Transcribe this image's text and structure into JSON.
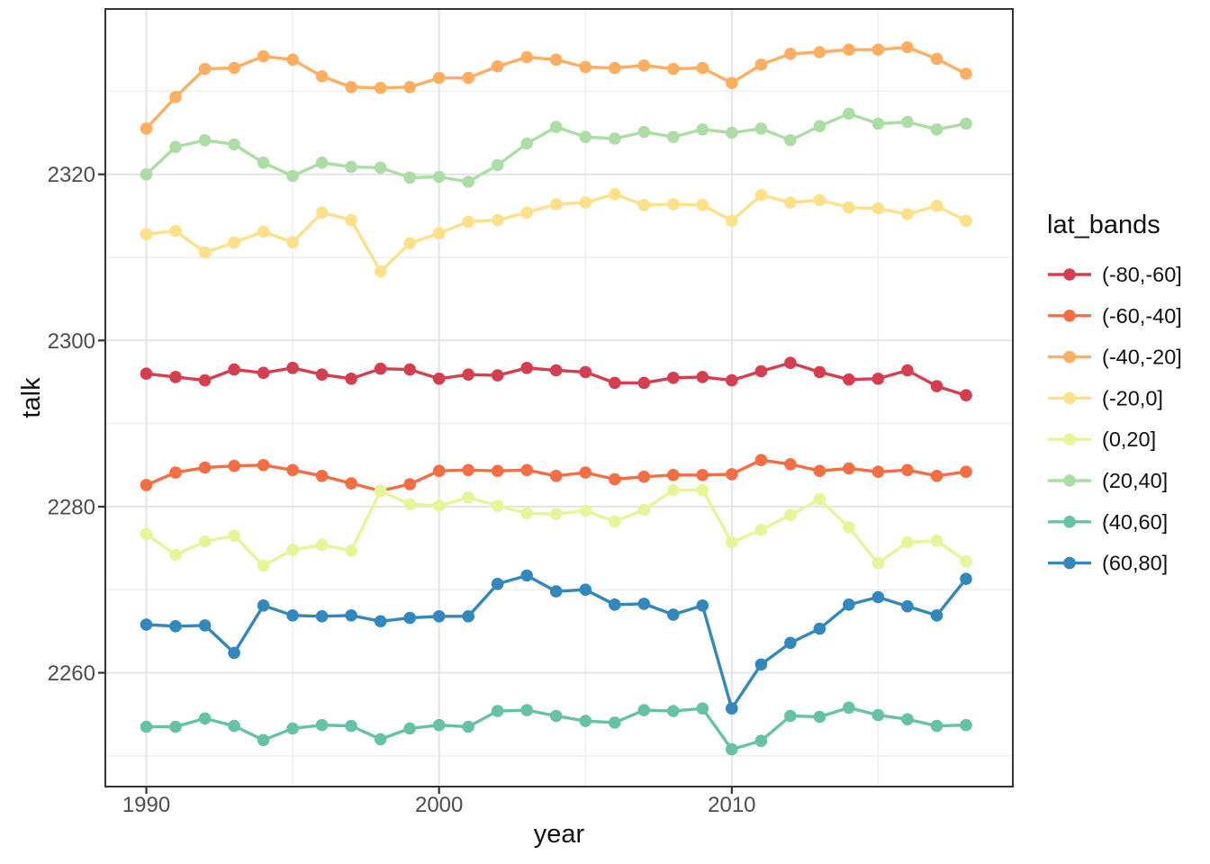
{
  "figure": {
    "background": "#ffffff",
    "panel_background": "#ffffff",
    "panel_border_color": "#343434",
    "grid_major_color": "#e4e4e4",
    "grid_minor_color": "#eeeeee",
    "tick_mark_color": "#333333",
    "tick_label_color": "#4d4d4d"
  },
  "chart_data": {
    "type": "line",
    "title": "",
    "xlabel": "year",
    "ylabel": "talk",
    "legend_title": "lat_bands",
    "legend_position": "right",
    "grid": "major+minor",
    "xlim": [
      1988.6,
      2019.6
    ],
    "ylim": [
      2246.3,
      2339.9
    ],
    "x_ticks": [
      1990,
      2000,
      2010
    ],
    "x_minor_ticks": [
      1995,
      2005,
      2015
    ],
    "y_ticks": [
      2260,
      2280,
      2300,
      2320
    ],
    "y_minor_ticks": [
      2250,
      2270,
      2290,
      2310,
      2330
    ],
    "x": [
      1990,
      1991,
      1992,
      1993,
      1994,
      1995,
      1996,
      1997,
      1998,
      1999,
      2000,
      2001,
      2002,
      2003,
      2004,
      2005,
      2006,
      2007,
      2008,
      2009,
      2010,
      2011,
      2012,
      2013,
      2014,
      2015,
      2016,
      2017,
      2018
    ],
    "series": [
      {
        "name": "(-80,-60]",
        "color": "#d53e4f",
        "values": [
          2296.0,
          2295.6,
          2295.2,
          2296.5,
          2296.1,
          2296.7,
          2295.9,
          2295.4,
          2296.6,
          2296.5,
          2295.4,
          2295.9,
          2295.8,
          2296.7,
          2296.4,
          2296.2,
          2294.9,
          2294.9,
          2295.5,
          2295.6,
          2295.2,
          2296.3,
          2297.3,
          2296.2,
          2295.3,
          2295.4,
          2296.4,
          2294.5,
          2293.4
        ]
      },
      {
        "name": "(-60,-40]",
        "color": "#f46d43",
        "values": [
          2282.6,
          2284.1,
          2284.7,
          2284.9,
          2285.0,
          2284.4,
          2283.7,
          2282.8,
          2281.9,
          2282.7,
          2284.3,
          2284.4,
          2284.3,
          2284.4,
          2283.7,
          2284.1,
          2283.3,
          2283.6,
          2283.8,
          2283.8,
          2283.9,
          2285.6,
          2285.1,
          2284.3,
          2284.6,
          2284.2,
          2284.4,
          2283.7,
          2284.2
        ]
      },
      {
        "name": "(-40,-20]",
        "color": "#fdae61",
        "values": [
          2325.5,
          2329.3,
          2332.7,
          2332.8,
          2334.2,
          2333.8,
          2331.8,
          2330.5,
          2330.4,
          2330.5,
          2331.6,
          2331.6,
          2333.0,
          2334.1,
          2333.8,
          2332.9,
          2332.8,
          2333.1,
          2332.7,
          2332.8,
          2331.0,
          2333.2,
          2334.5,
          2334.7,
          2335.0,
          2335.0,
          2335.3,
          2333.9,
          2332.1
        ]
      },
      {
        "name": "(-20,0]",
        "color": "#fee08b",
        "values": [
          2312.8,
          2313.2,
          2310.6,
          2311.8,
          2313.1,
          2311.8,
          2315.4,
          2314.5,
          2308.3,
          2311.7,
          2312.9,
          2314.3,
          2314.5,
          2315.4,
          2316.4,
          2316.6,
          2317.6,
          2316.3,
          2316.4,
          2316.3,
          2314.4,
          2317.5,
          2316.6,
          2316.9,
          2316.0,
          2315.9,
          2315.2,
          2316.2,
          2314.4
        ]
      },
      {
        "name": "(0,20]",
        "color": "#e6f598",
        "values": [
          2276.7,
          2274.2,
          2275.8,
          2276.5,
          2272.9,
          2274.8,
          2275.4,
          2274.7,
          2281.9,
          2280.3,
          2280.1,
          2281.1,
          2280.1,
          2279.2,
          2279.1,
          2279.5,
          2278.2,
          2279.6,
          2282.0,
          2282.0,
          2275.7,
          2277.2,
          2279.0,
          2280.9,
          2277.5,
          2273.2,
          2275.7,
          2275.9,
          2273.4
        ]
      },
      {
        "name": "(20,40]",
        "color": "#abdda4",
        "values": [
          2320.0,
          2323.3,
          2324.1,
          2323.6,
          2321.4,
          2319.8,
          2321.4,
          2320.9,
          2320.8,
          2319.6,
          2319.7,
          2319.1,
          2321.1,
          2323.7,
          2325.7,
          2324.5,
          2324.3,
          2325.1,
          2324.5,
          2325.4,
          2325.0,
          2325.5,
          2324.1,
          2325.8,
          2327.3,
          2326.1,
          2326.3,
          2325.4,
          2326.1
        ]
      },
      {
        "name": "(40,60]",
        "color": "#66c2a5",
        "values": [
          2253.5,
          2253.5,
          2254.5,
          2253.6,
          2251.9,
          2253.3,
          2253.7,
          2253.6,
          2252.0,
          2253.3,
          2253.7,
          2253.5,
          2255.4,
          2255.5,
          2254.8,
          2254.2,
          2254.0,
          2255.5,
          2255.4,
          2255.7,
          2250.8,
          2251.8,
          2254.8,
          2254.7,
          2255.8,
          2254.9,
          2254.4,
          2253.6,
          2253.7
        ]
      },
      {
        "name": "(60,80]",
        "color": "#3288bd",
        "values": [
          2265.8,
          2265.6,
          2265.7,
          2262.4,
          2268.1,
          2266.9,
          2266.8,
          2266.9,
          2266.2,
          2266.6,
          2266.8,
          2266.8,
          2270.7,
          2271.7,
          2269.8,
          2270.0,
          2268.2,
          2268.3,
          2267.0,
          2268.1,
          2255.7,
          2261.0,
          2263.6,
          2265.3,
          2268.2,
          2269.1,
          2268.0,
          2266.9,
          2271.3
        ]
      }
    ]
  }
}
